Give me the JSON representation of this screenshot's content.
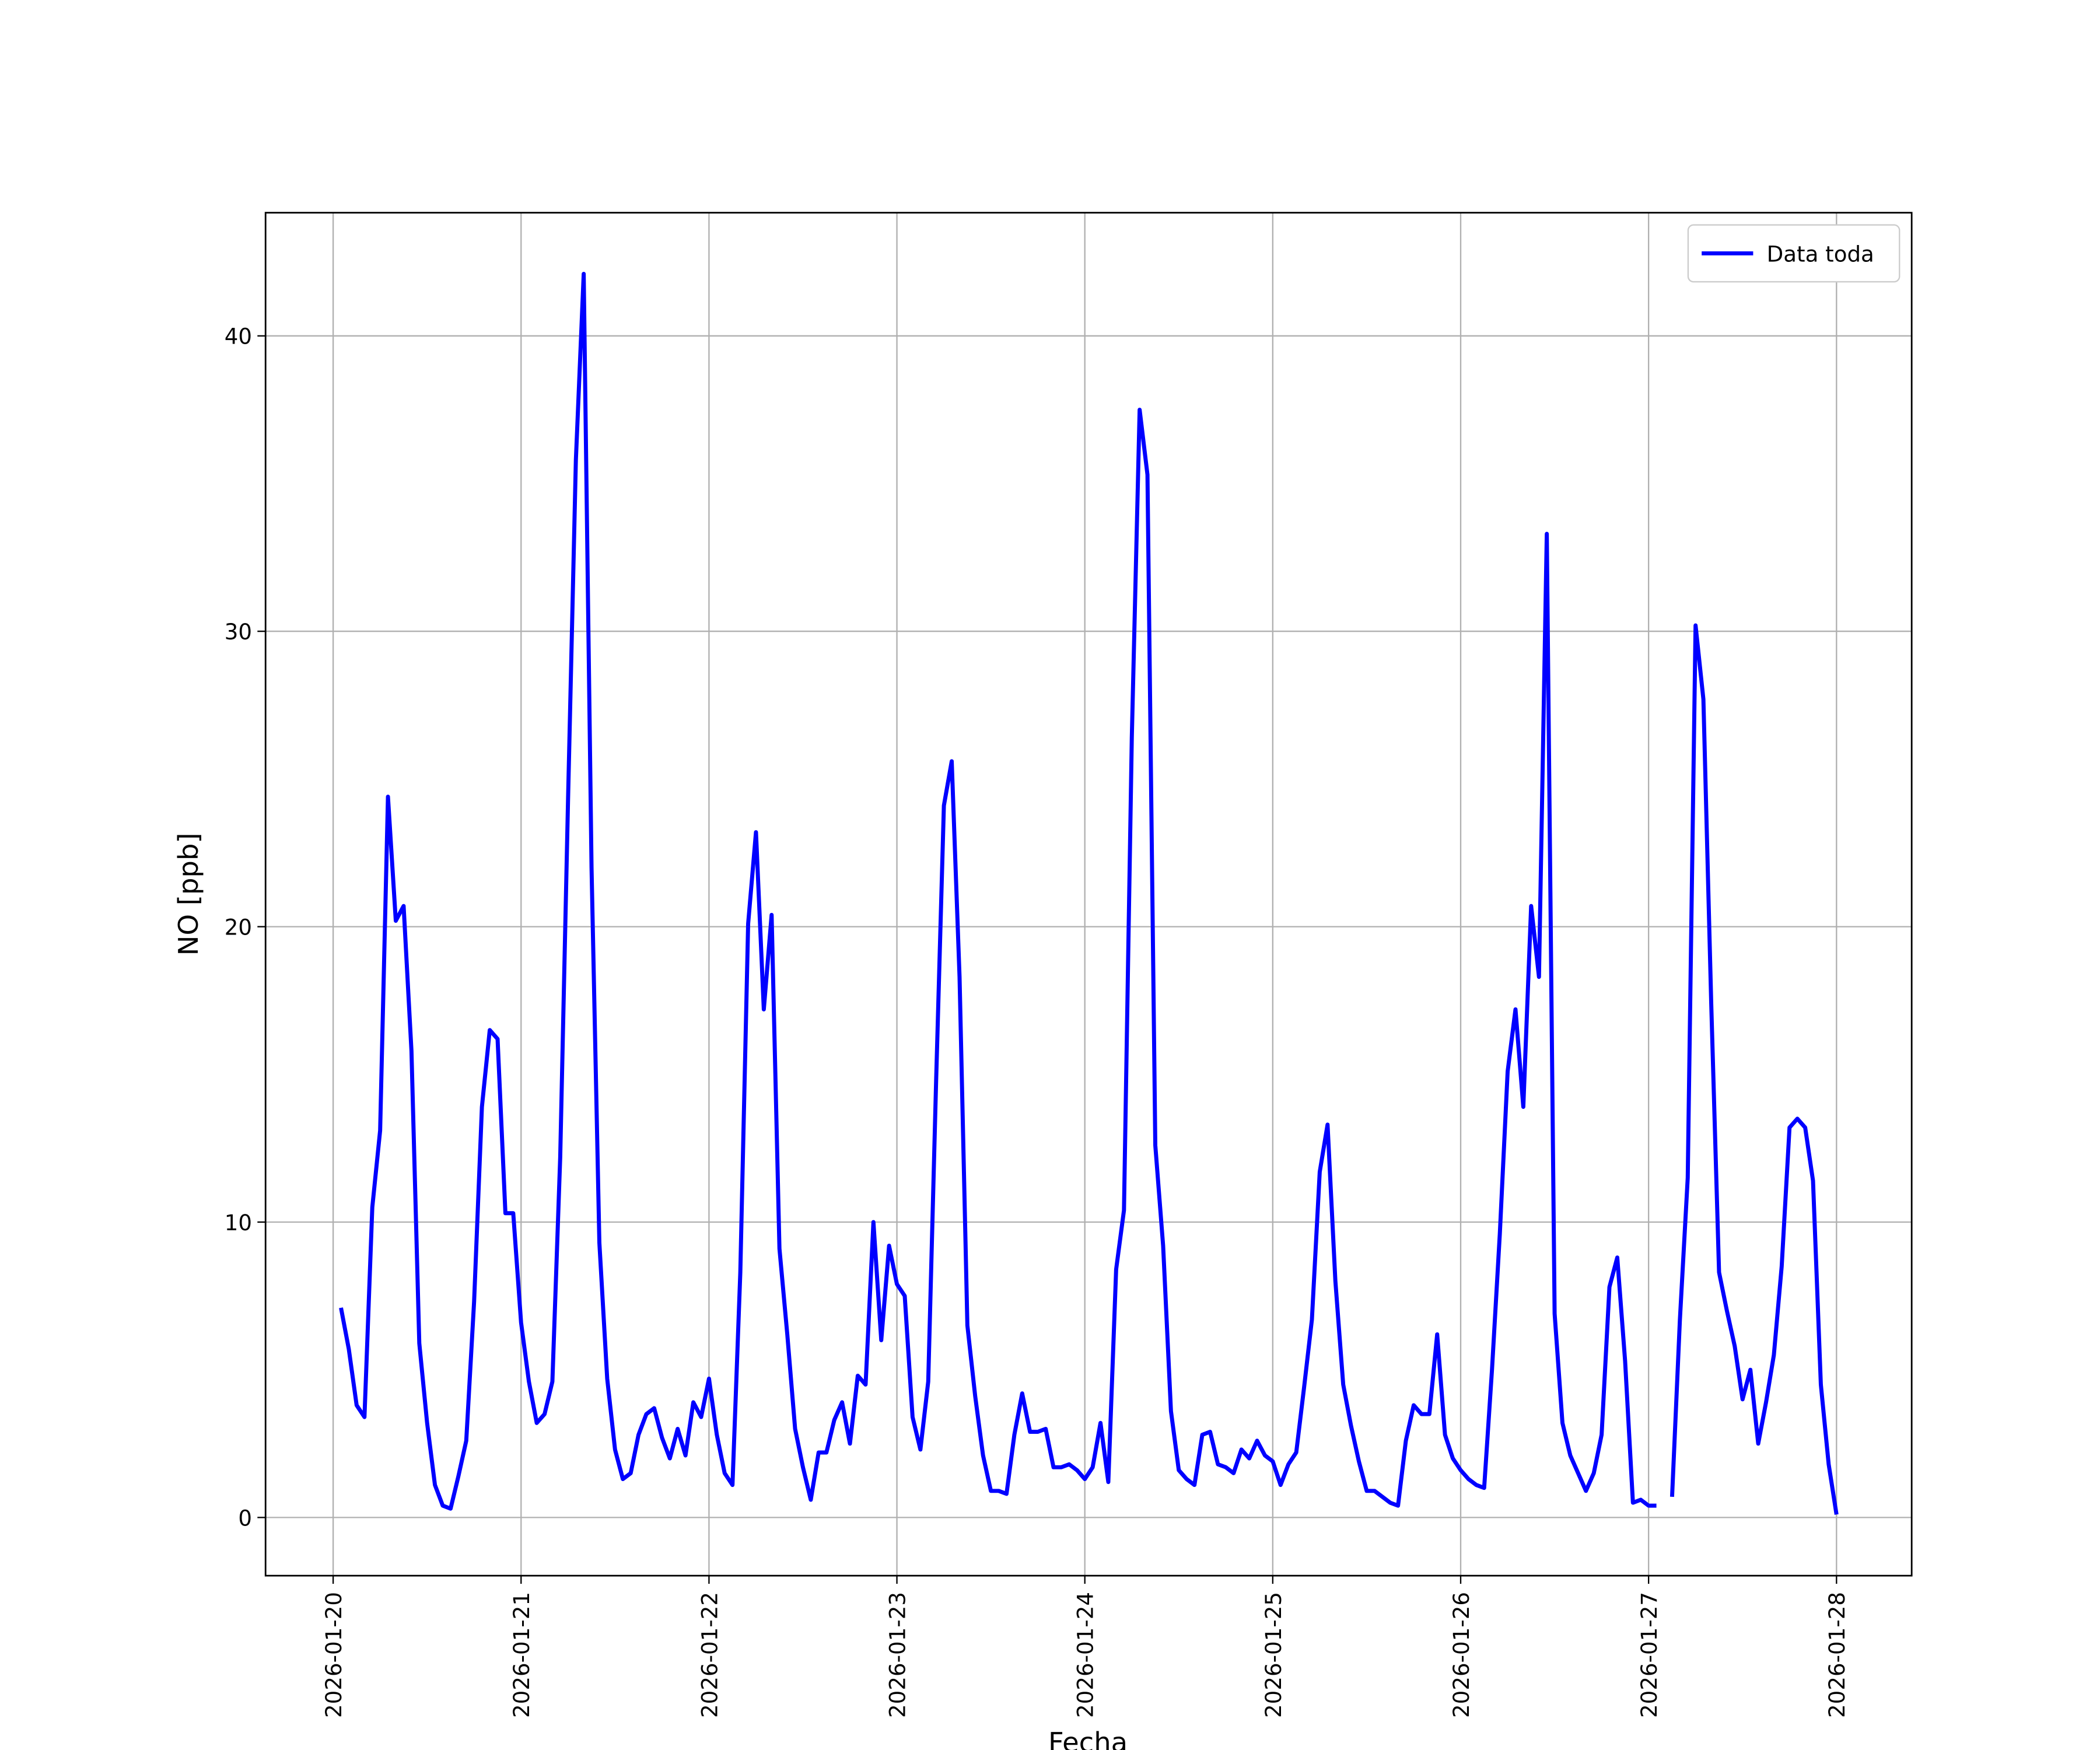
{
  "chart_data": {
    "type": "line",
    "xlabel": "Fecha",
    "ylabel": "NO [ppb]",
    "x": [
      "2026-01-20T01:00",
      "2026-01-20T02:00",
      "2026-01-20T03:00",
      "2026-01-20T04:00",
      "2026-01-20T05:00",
      "2026-01-20T06:00",
      "2026-01-20T07:00",
      "2026-01-20T08:00",
      "2026-01-20T09:00",
      "2026-01-20T10:00",
      "2026-01-20T11:00",
      "2026-01-20T12:00",
      "2026-01-20T13:00",
      "2026-01-20T14:00",
      "2026-01-20T15:00",
      "2026-01-20T16:00",
      "2026-01-20T17:00",
      "2026-01-20T18:00",
      "2026-01-20T19:00",
      "2026-01-20T20:00",
      "2026-01-20T21:00",
      "2026-01-20T22:00",
      "2026-01-20T23:00",
      "2026-01-21T00:00",
      "2026-01-21T01:00",
      "2026-01-21T02:00",
      "2026-01-21T03:00",
      "2026-01-21T04:00",
      "2026-01-21T05:00",
      "2026-01-21T06:00",
      "2026-01-21T07:00",
      "2026-01-21T08:00",
      "2026-01-21T09:00",
      "2026-01-21T10:00",
      "2026-01-21T11:00",
      "2026-01-21T12:00",
      "2026-01-21T13:00",
      "2026-01-21T14:00",
      "2026-01-21T15:00",
      "2026-01-21T16:00",
      "2026-01-21T17:00",
      "2026-01-21T18:00",
      "2026-01-21T19:00",
      "2026-01-21T20:00",
      "2026-01-21T21:00",
      "2026-01-21T22:00",
      "2026-01-21T23:00",
      "2026-01-22T00:00",
      "2026-01-22T01:00",
      "2026-01-22T02:00",
      "2026-01-22T03:00",
      "2026-01-22T04:00",
      "2026-01-22T05:00",
      "2026-01-22T06:00",
      "2026-01-22T07:00",
      "2026-01-22T08:00",
      "2026-01-22T09:00",
      "2026-01-22T10:00",
      "2026-01-22T11:00",
      "2026-01-22T12:00",
      "2026-01-22T13:00",
      "2026-01-22T14:00",
      "2026-01-22T15:00",
      "2026-01-22T16:00",
      "2026-01-22T17:00",
      "2026-01-22T18:00",
      "2026-01-22T19:00",
      "2026-01-22T20:00",
      "2026-01-22T21:00",
      "2026-01-22T22:00",
      "2026-01-22T23:00",
      "2026-01-23T00:00",
      "2026-01-23T01:00",
      "2026-01-23T02:00",
      "2026-01-23T03:00",
      "2026-01-23T04:00",
      "2026-01-23T05:00",
      "2026-01-23T06:00",
      "2026-01-23T07:00",
      "2026-01-23T08:00",
      "2026-01-23T09:00",
      "2026-01-23T10:00",
      "2026-01-23T11:00",
      "2026-01-23T12:00",
      "2026-01-23T13:00",
      "2026-01-23T14:00",
      "2026-01-23T15:00",
      "2026-01-23T16:00",
      "2026-01-23T17:00",
      "2026-01-23T18:00",
      "2026-01-23T19:00",
      "2026-01-23T20:00",
      "2026-01-23T21:00",
      "2026-01-23T22:00",
      "2026-01-23T23:00",
      "2026-01-24T00:00",
      "2026-01-24T01:00",
      "2026-01-24T02:00",
      "2026-01-24T03:00",
      "2026-01-24T04:00",
      "2026-01-24T05:00",
      "2026-01-24T06:00",
      "2026-01-24T07:00",
      "2026-01-24T08:00",
      "2026-01-24T09:00",
      "2026-01-24T10:00",
      "2026-01-24T11:00",
      "2026-01-24T12:00",
      "2026-01-24T13:00",
      "2026-01-24T14:00",
      "2026-01-24T15:00",
      "2026-01-24T16:00",
      "2026-01-24T17:00",
      "2026-01-24T18:00",
      "2026-01-24T19:00",
      "2026-01-24T20:00",
      "2026-01-24T21:00",
      "2026-01-24T22:00",
      "2026-01-24T23:00",
      "2026-01-25T00:00",
      "2026-01-25T01:00",
      "2026-01-25T02:00",
      "2026-01-25T03:00",
      "2026-01-25T04:00",
      "2026-01-25T05:00",
      "2026-01-25T06:00",
      "2026-01-25T07:00",
      "2026-01-25T08:00",
      "2026-01-25T09:00",
      "2026-01-25T10:00",
      "2026-01-25T11:00",
      "2026-01-25T12:00",
      "2026-01-25T13:00",
      "2026-01-25T14:00",
      "2026-01-25T15:00",
      "2026-01-25T16:00",
      "2026-01-25T17:00",
      "2026-01-25T18:00",
      "2026-01-25T19:00",
      "2026-01-25T20:00",
      "2026-01-25T21:00",
      "2026-01-25T22:00",
      "2026-01-25T23:00",
      "2026-01-26T00:00",
      "2026-01-26T01:00",
      "2026-01-26T02:00",
      "2026-01-26T03:00",
      "2026-01-26T04:00",
      "2026-01-26T05:00",
      "2026-01-26T06:00",
      "2026-01-26T07:00",
      "2026-01-26T08:00",
      "2026-01-26T09:00",
      "2026-01-26T10:00",
      "2026-01-26T11:00",
      "2026-01-26T12:00",
      "2026-01-26T13:00",
      "2026-01-26T14:00",
      "2026-01-26T15:00",
      "2026-01-26T16:00",
      "2026-01-26T17:00",
      "2026-01-26T18:00",
      "2026-01-26T19:00",
      "2026-01-26T20:00",
      "2026-01-26T21:00",
      "2026-01-26T22:00",
      "2026-01-26T23:00",
      "2026-01-27T00:00",
      "2026-01-27T01:00",
      "2026-01-27T02:00",
      "2026-01-27T03:00",
      "2026-01-27T04:00",
      "2026-01-27T05:00",
      "2026-01-27T06:00",
      "2026-01-27T07:00",
      "2026-01-27T08:00",
      "2026-01-27T09:00",
      "2026-01-27T10:00",
      "2026-01-27T11:00",
      "2026-01-27T12:00",
      "2026-01-27T13:00",
      "2026-01-27T14:00",
      "2026-01-27T15:00",
      "2026-01-27T16:00",
      "2026-01-27T17:00",
      "2026-01-27T18:00",
      "2026-01-27T19:00",
      "2026-01-27T20:00",
      "2026-01-27T21:00",
      "2026-01-27T22:00",
      "2026-01-27T23:00",
      "2026-01-28T00:00"
    ],
    "series": [
      {
        "name": "Data toda",
        "color": "#0000ff",
        "values": [
          7.1,
          5.7,
          3.8,
          3.4,
          10.5,
          13.1,
          24.4,
          20.2,
          20.7,
          15.8,
          5.9,
          3.2,
          1.1,
          0.4,
          0.3,
          1.4,
          2.6,
          7.3,
          13.9,
          16.5,
          16.2,
          10.3,
          10.3,
          6.6,
          4.6,
          3.2,
          3.5,
          4.6,
          12.2,
          24.3,
          35.8,
          42.1,
          22.0,
          9.3,
          4.7,
          2.3,
          1.3,
          1.5,
          2.8,
          3.5,
          3.7,
          2.7,
          2.0,
          3.0,
          2.1,
          3.9,
          3.4,
          4.7,
          2.8,
          1.5,
          1.1,
          8.3,
          20.1,
          23.2,
          17.2,
          20.4,
          9.1,
          6.2,
          3.0,
          1.7,
          0.6,
          2.2,
          2.2,
          3.3,
          3.9,
          2.5,
          4.8,
          4.5,
          10.0,
          6.0,
          9.2,
          7.9,
          7.5,
          3.4,
          2.3,
          4.6,
          14.7,
          24.1,
          25.6,
          18.3,
          6.5,
          4.1,
          2.1,
          0.9,
          0.9,
          0.8,
          2.8,
          4.2,
          2.9,
          2.9,
          3.0,
          1.7,
          1.7,
          1.8,
          1.6,
          1.3,
          1.7,
          3.2,
          1.2,
          8.4,
          10.4,
          26.4,
          37.5,
          35.3,
          12.6,
          9.2,
          3.6,
          1.6,
          1.3,
          1.1,
          2.8,
          2.9,
          1.8,
          1.7,
          1.5,
          2.3,
          2.0,
          2.6,
          2.1,
          1.9,
          1.1,
          1.8,
          2.2,
          4.4,
          6.7,
          11.7,
          13.3,
          8.0,
          4.5,
          3.1,
          1.9,
          0.9,
          0.9,
          0.7,
          0.5,
          0.4,
          2.6,
          3.8,
          3.5,
          3.5,
          6.2,
          2.8,
          2.0,
          1.6,
          1.3,
          1.1,
          1.0,
          5.0,
          9.6,
          15.1,
          17.2,
          13.9,
          20.7,
          18.3,
          33.3,
          6.9,
          3.2,
          2.1,
          1.5,
          0.9,
          1.5,
          2.8,
          7.8,
          8.8,
          5.3,
          0.5,
          0.6,
          0.4,
          0.4,
          null,
          0.7,
          6.7,
          11.5,
          30.2,
          27.7,
          17.4,
          8.3,
          7.0,
          5.8,
          4.0,
          5.0,
          2.5,
          3.9,
          5.5,
          8.5,
          13.2,
          13.5,
          13.2,
          11.4,
          4.5,
          1.8,
          0.1
        ]
      }
    ],
    "xlim": [
      "2026-01-19T15:22",
      "2026-01-28T09:36"
    ],
    "xticks": [
      "2026-01-20",
      "2026-01-21",
      "2026-01-22",
      "2026-01-23",
      "2026-01-24",
      "2026-01-25",
      "2026-01-26",
      "2026-01-27",
      "2026-01-28"
    ],
    "ylim": [
      -1.97,
      44.17
    ],
    "yticks": [
      0,
      10,
      20,
      30,
      40
    ],
    "grid": true,
    "legend": "upper right"
  }
}
